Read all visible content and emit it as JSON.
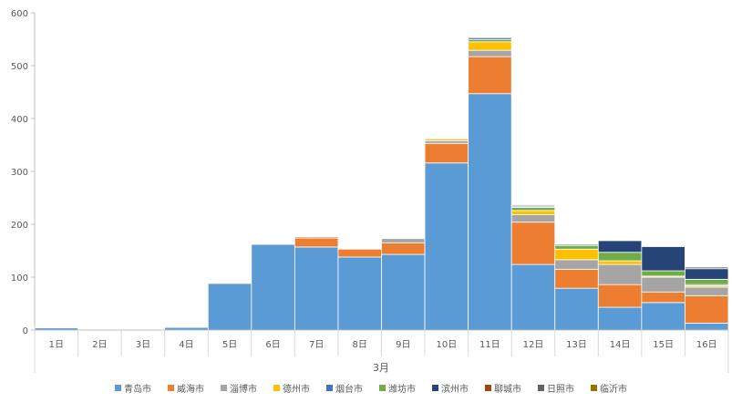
{
  "chart_data": {
    "type": "bar",
    "stacked": true,
    "title": "",
    "xlabel": "3月",
    "ylabel": "",
    "ylim": [
      0,
      600
    ],
    "yticks": [
      0,
      100,
      200,
      300,
      400,
      500,
      600
    ],
    "grid": false,
    "legend_position": "bottom",
    "categories": [
      "1日",
      "2日",
      "3日",
      "4日",
      "5日",
      "6日",
      "7日",
      "8日",
      "9日",
      "10日",
      "11日",
      "12日",
      "13日",
      "14日",
      "15日",
      "16日"
    ],
    "series": [
      {
        "name": "青岛市",
        "color": "#5b9bd5",
        "values": [
          4,
          0,
          0,
          5,
          88,
          162,
          157,
          138,
          143,
          316,
          447,
          124,
          79,
          43,
          52,
          13
        ]
      },
      {
        "name": "威海市",
        "color": "#ed7d31",
        "values": [
          0,
          0,
          0,
          0,
          0,
          0,
          17,
          15,
          22,
          37,
          70,
          80,
          36,
          43,
          20,
          52
        ]
      },
      {
        "name": "淄博市",
        "color": "#a5a5a5",
        "values": [
          0,
          0,
          0,
          0,
          0,
          0,
          0,
          0,
          8,
          5,
          12,
          14,
          18,
          38,
          28,
          16
        ]
      },
      {
        "name": "德州市",
        "color": "#ffc000",
        "values": [
          0,
          0,
          0,
          0,
          0,
          0,
          0,
          0,
          0,
          3,
          16,
          8,
          20,
          7,
          2,
          3
        ]
      },
      {
        "name": "烟台市",
        "color": "#4472c4",
        "values": [
          0,
          0,
          0,
          0,
          0,
          0,
          0,
          0,
          0,
          0,
          0,
          0,
          0,
          0,
          0,
          2
        ]
      },
      {
        "name": "潍坊市",
        "color": "#70ad47",
        "values": [
          0,
          0,
          0,
          0,
          0,
          0,
          0,
          0,
          0,
          2,
          4,
          6,
          7,
          16,
          10,
          10
        ]
      },
      {
        "name": "滨州市",
        "color": "#264478",
        "values": [
          0,
          0,
          0,
          0,
          0,
          0,
          0,
          0,
          0,
          0,
          3,
          2,
          2,
          22,
          46,
          20
        ]
      },
      {
        "name": "聊城市",
        "color": "#9e480e",
        "values": [
          0,
          0,
          0,
          0,
          0,
          0,
          2,
          0,
          0,
          1,
          0,
          1,
          0,
          0,
          1,
          0
        ]
      },
      {
        "name": "日照市",
        "color": "#636363",
        "values": [
          0,
          0,
          0,
          0,
          0,
          0,
          0,
          0,
          1,
          1,
          2,
          2,
          0,
          0,
          0,
          3
        ]
      },
      {
        "name": "临沂市",
        "color": "#997300",
        "values": [
          0,
          0,
          0,
          0,
          0,
          0,
          0,
          0,
          0,
          0,
          1,
          0,
          0,
          0,
          0,
          0
        ]
      }
    ]
  }
}
